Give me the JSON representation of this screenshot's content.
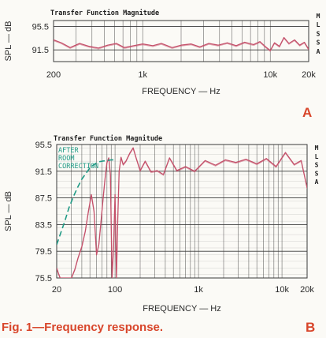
{
  "figure": {
    "caption": "Fig. 1—Frequency response.",
    "panel_labels": [
      "A",
      "B"
    ],
    "side_labels": [
      "M",
      "L",
      "S",
      "S",
      "A"
    ]
  },
  "colors": {
    "trace": "#c4506a",
    "correction": "#1f9a85",
    "grid": "#3a3a3a",
    "accent": "#d8452a"
  },
  "chart_data": [
    {
      "type": "line",
      "panel": "A",
      "title": "Transfer Function Magnitude",
      "xlabel": "FREQUENCY — Hz",
      "ylabel": "SPL — dB",
      "x_scale": "log",
      "xlim": [
        200,
        20000
      ],
      "ylim": [
        89.5,
        96.5
      ],
      "ytick_values": [
        95.5,
        91.5
      ],
      "ytick_labels": [
        "95.5",
        "91.5"
      ],
      "xtick_values": [
        200,
        1000,
        10000,
        20000
      ],
      "xtick_labels": [
        "200",
        "1k",
        "10k",
        "20k"
      ],
      "grid": true,
      "series": [
        {
          "x": [
            200,
            230,
            270,
            320,
            380,
            450,
            530,
            620,
            720,
            850,
            1000,
            1200,
            1400,
            1700,
            2000,
            2400,
            2800,
            3300,
            3900,
            4600,
            5400,
            6300,
            7400,
            8300,
            9200,
            10000,
            10800,
            11800,
            12800,
            14000,
            15500,
            17000,
            18500,
            20000
          ],
          "y": [
            93.2,
            92.7,
            91.9,
            92.6,
            92.1,
            91.8,
            92.3,
            92.6,
            91.9,
            92.2,
            92.5,
            92.2,
            92.6,
            91.9,
            92.3,
            92.5,
            92.0,
            92.6,
            92.3,
            92.7,
            92.2,
            92.8,
            92.4,
            92.9,
            92.0,
            91.4,
            92.7,
            92.1,
            93.6,
            92.6,
            93.2,
            92.3,
            92.8,
            91.6
          ]
        }
      ]
    },
    {
      "type": "line",
      "panel": "B",
      "title": "Transfer Function Magnitude",
      "xlabel": "FREQUENCY — Hz",
      "ylabel": "SPL — dB",
      "x_scale": "log",
      "xlim": [
        20,
        20000
      ],
      "ylim": [
        75.5,
        95.5
      ],
      "ytick_values": [
        95.5,
        91.5,
        87.5,
        83.5,
        79.5,
        75.5
      ],
      "ytick_labels": [
        "95.5",
        "91.5",
        "87.5",
        "83.5",
        "79.5",
        "75.5"
      ],
      "xtick_values": [
        20,
        100,
        1000,
        10000,
        20000
      ],
      "xtick_labels": [
        "20",
        "100",
        "1k",
        "10k",
        "20k"
      ],
      "grid": true,
      "annotations": [
        "AFTER",
        "ROOM",
        "CORRECTION"
      ],
      "series": [
        {
          "style": "solid",
          "x": [
            20,
            21,
            22,
            24,
            26,
            28,
            30,
            33,
            36,
            40,
            44,
            48,
            52,
            56,
            60,
            64,
            68,
            72,
            76,
            80,
            84,
            88,
            92,
            96,
            100,
            104,
            108,
            112,
            118,
            125,
            135,
            150,
            165,
            180,
            200,
            230,
            270,
            320,
            380,
            450,
            550,
            700,
            900,
            1200,
            1600,
            2100,
            2800,
            3700,
            5000,
            6500,
            8500,
            11000,
            14000,
            17000,
            20000
          ],
          "y": [
            77.0,
            76.2,
            75.5,
            75.5,
            75.5,
            75.5,
            75.5,
            76.8,
            78.5,
            80.2,
            82.5,
            85.5,
            88.0,
            85.5,
            79.0,
            80.5,
            84.0,
            87.5,
            90.5,
            92.8,
            93.5,
            91.0,
            75.5,
            80.0,
            88.0,
            75.5,
            84.5,
            91.5,
            93.6,
            92.5,
            93.0,
            94.2,
            95.0,
            93.4,
            91.6,
            93.0,
            91.4,
            91.6,
            91.0,
            93.5,
            91.6,
            92.2,
            91.5,
            93.1,
            92.4,
            93.2,
            92.8,
            93.3,
            92.6,
            93.4,
            92.2,
            94.3,
            92.5,
            93.1,
            89.0
          ]
        },
        {
          "name": "AFTER ROOM CORRECTION",
          "style": "dashed",
          "x": [
            20,
            22,
            25,
            28,
            32,
            36,
            40,
            45,
            50,
            56,
            63,
            70,
            80,
            90,
            100
          ],
          "y": [
            80.5,
            82.0,
            84.0,
            86.0,
            87.8,
            89.2,
            90.3,
            91.2,
            92.0,
            92.5,
            92.9,
            93.0,
            93.1,
            93.2,
            93.2
          ]
        }
      ]
    }
  ]
}
